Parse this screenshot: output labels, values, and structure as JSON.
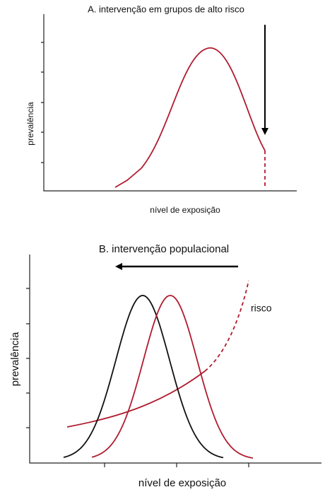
{
  "panel_a": {
    "title": "A. intervenção em grupos de alto risco",
    "y_label": "prevalência",
    "x_label": "nível de exposição"
  },
  "panel_b": {
    "title": "B. intervenção populacional",
    "y_label": "prevalência",
    "risk_label": "risco",
    "x_label": "nível de exposição"
  }
}
